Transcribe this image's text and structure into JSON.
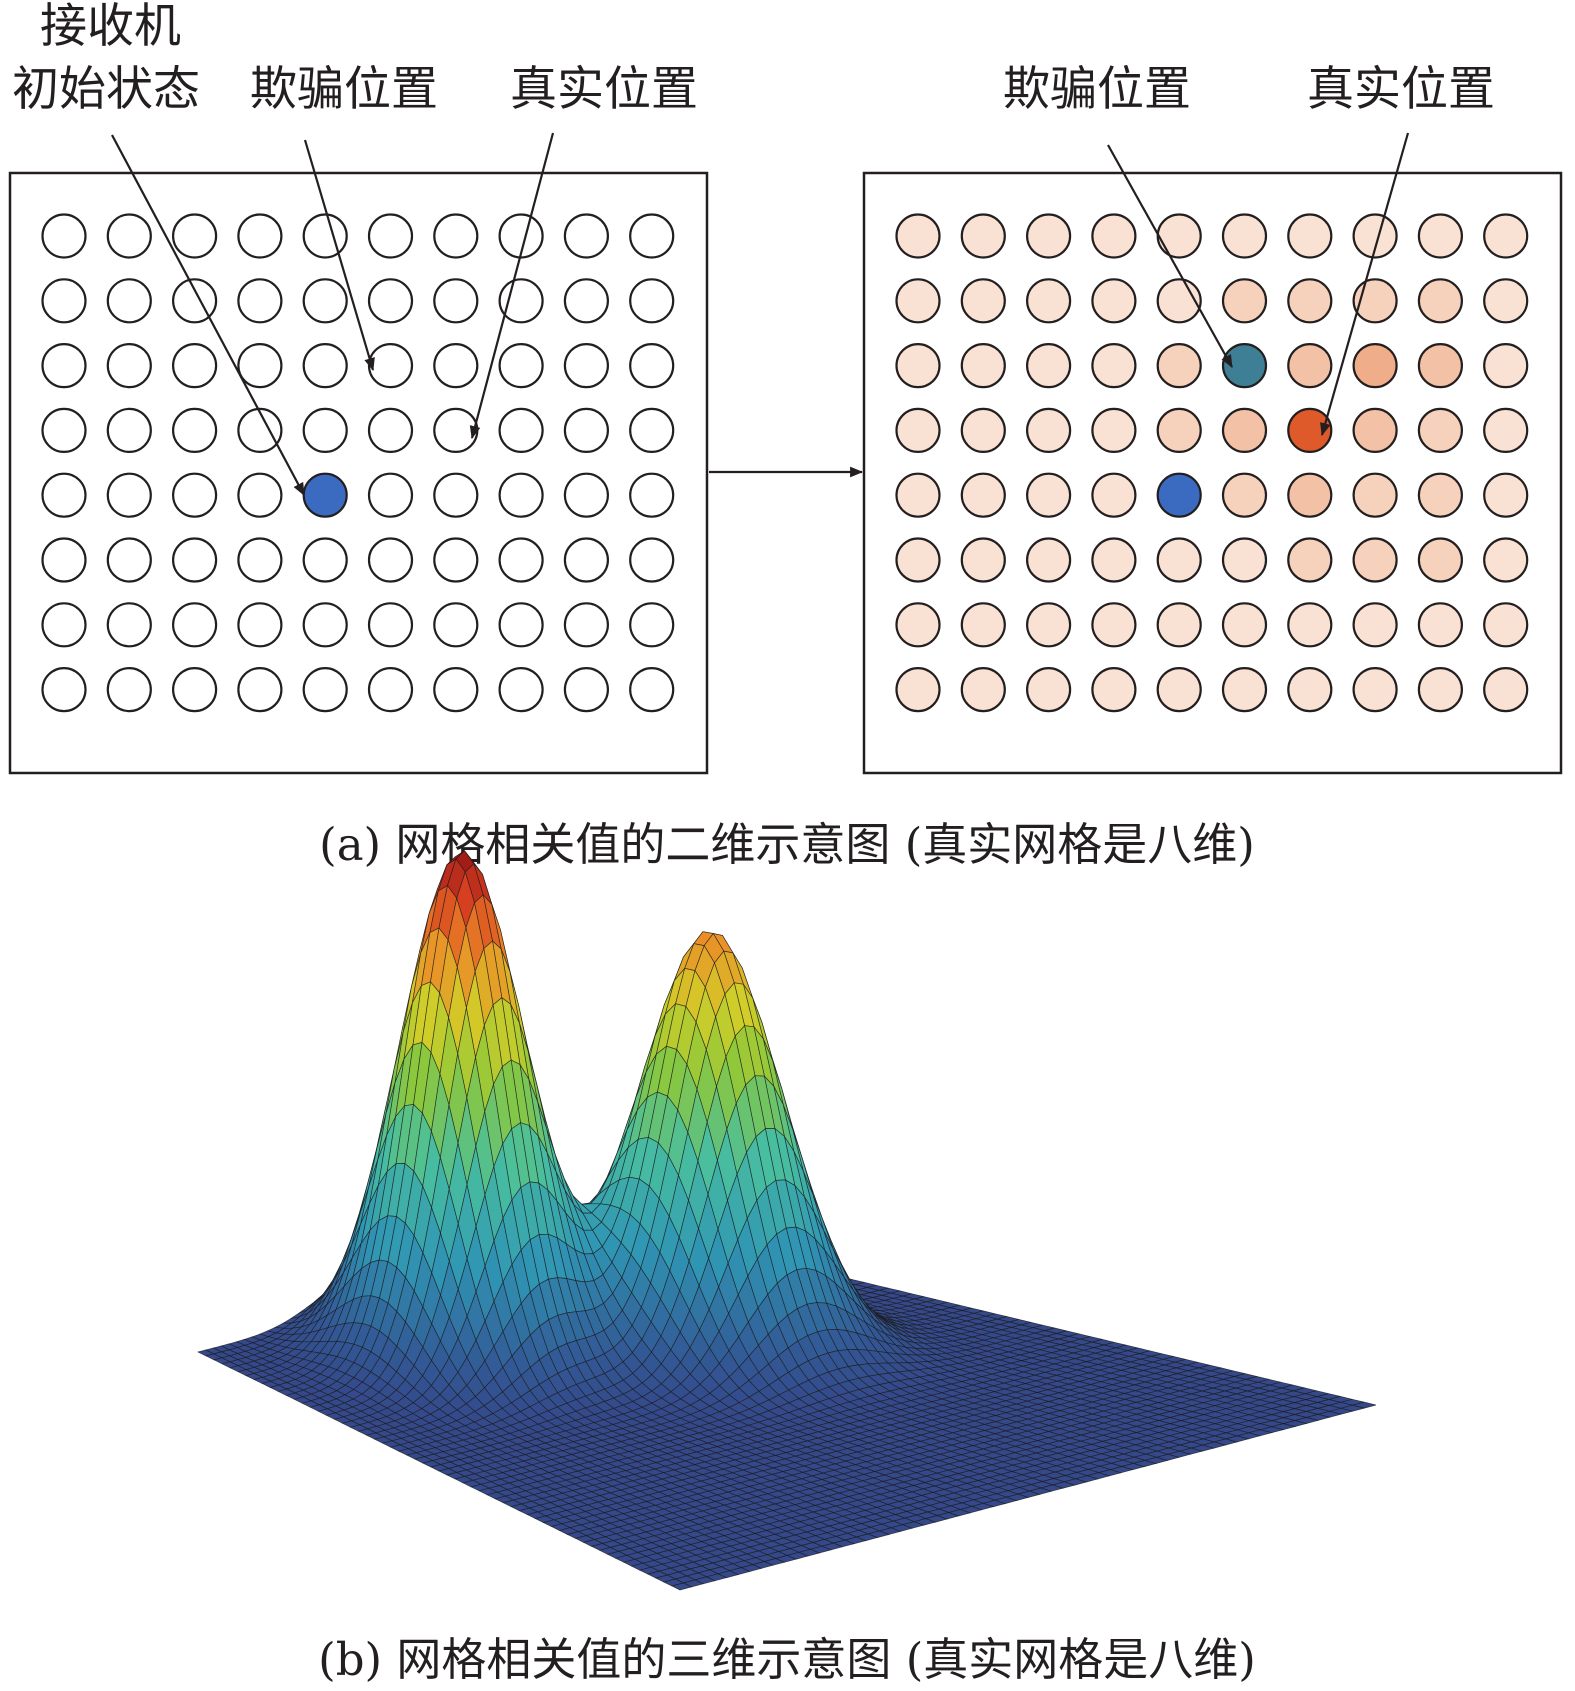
{
  "panel_a": {
    "caption": "(a) 网格相关值的二维示意图 (真实网格是八维)",
    "left_grid": {
      "rows": 8,
      "cols": 10,
      "receiver_initial_label_line1": "接收机",
      "receiver_initial_label_line2": "初始状态",
      "spoofed_label": "欺骗位置",
      "true_label": "真实位置",
      "empty_cell_color": "#ffffff",
      "receiver_color": "#3a6bc0",
      "receiver_cell": [
        4,
        4
      ],
      "spoofed_cell": [
        2,
        5
      ],
      "true_cell": [
        3,
        6
      ]
    },
    "right_grid": {
      "rows": 8,
      "cols": 10,
      "spoofed_label": "欺骗位置",
      "true_label": "真实位置",
      "receiver_color": "#3a6bc0",
      "spoofed_color": "#3e7f96",
      "true_color": "#de5a2a",
      "receiver_cell": [
        4,
        4
      ],
      "spoofed_cell": [
        2,
        5
      ],
      "true_cell": [
        3,
        6
      ],
      "palette": [
        "#f9e2d3",
        "#f6d2bc",
        "#f3c1a5",
        "#efad8a",
        "#de5a2a"
      ],
      "correlation_levels": [
        [
          0,
          0,
          0,
          0,
          0,
          0,
          0,
          0,
          0,
          0
        ],
        [
          0,
          0,
          0,
          0,
          0,
          1,
          1,
          1,
          1,
          0
        ],
        [
          0,
          0,
          0,
          0,
          1,
          2,
          2,
          3,
          2,
          0
        ],
        [
          0,
          0,
          0,
          0,
          1,
          2,
          4,
          2,
          1,
          0
        ],
        [
          0,
          0,
          0,
          0,
          0,
          1,
          2,
          1,
          1,
          0
        ],
        [
          0,
          0,
          0,
          0,
          0,
          0,
          1,
          1,
          1,
          0
        ],
        [
          0,
          0,
          0,
          0,
          0,
          0,
          0,
          0,
          0,
          0
        ],
        [
          0,
          0,
          0,
          0,
          0,
          0,
          0,
          0,
          0,
          0
        ]
      ]
    }
  },
  "panel_b": {
    "caption": "(b) 网格相关值的三维示意图 (真实网格是八维)",
    "colormap": "jet",
    "peaks": [
      {
        "amplitude": 1.0
      },
      {
        "amplitude": 0.83
      }
    ]
  }
}
